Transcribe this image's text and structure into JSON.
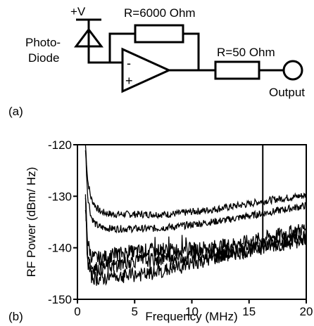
{
  "circuit": {
    "supply_label": "+V",
    "photodiode_label_line1": "Photo-",
    "photodiode_label_line2": "Diode",
    "feedback_resistor_label": "R=6000 Ohm",
    "output_resistor_label": "R=50 Ohm",
    "inverting_input_label": "-",
    "noninverting_input_label": "+",
    "output_label": "Output",
    "panel_label": "(a)"
  },
  "chart_panel_label": "(b)",
  "chart_data": {
    "type": "line",
    "title": "",
    "xlabel": "Frequency (MHz)",
    "ylabel": "RF Power (dBm/ Hz)",
    "xlim": [
      0,
      20
    ],
    "ylim": [
      -150,
      -120
    ],
    "xticks": [
      0,
      5,
      10,
      15,
      20
    ],
    "xtick_labels": [
      "0",
      "5",
      "10",
      "15",
      "20"
    ],
    "yticks": [
      -150,
      -140,
      -130,
      -120
    ],
    "ytick_labels": [
      "-150",
      "-140",
      "-130",
      "-120"
    ],
    "grid": false,
    "legend": false,
    "series": [
      {
        "x": [
          0.7,
          0.9,
          1.2,
          1.6,
          2,
          3,
          4,
          5,
          6,
          7,
          8,
          9,
          10,
          11,
          12,
          13,
          14,
          15,
          16,
          17,
          18,
          19,
          20
        ],
        "y": [
          -120,
          -127,
          -130.5,
          -132,
          -133,
          -133.5,
          -133.5,
          -133.5,
          -133.5,
          -133.5,
          -133.5,
          -133.3,
          -133,
          -132.8,
          -132.5,
          -132.2,
          -131.8,
          -131.5,
          -131,
          -130.7,
          -130.4,
          -130.1,
          -129.8
        ]
      },
      {
        "x": [
          0.7,
          0.9,
          1.2,
          1.6,
          2,
          3,
          4,
          5,
          6,
          7,
          8,
          9,
          10,
          11,
          12,
          13,
          14,
          15,
          16,
          17,
          18,
          19,
          20
        ],
        "y": [
          -121,
          -130,
          -134,
          -135.5,
          -136,
          -136.3,
          -136.3,
          -136.3,
          -136.3,
          -136.2,
          -136,
          -135.8,
          -135.5,
          -135.2,
          -134.9,
          -134.6,
          -134.2,
          -133.8,
          -133.4,
          -133,
          -132.6,
          -132.2,
          -131.8
        ]
      },
      {
        "x": [
          0.7,
          0.9,
          1.2,
          1.6,
          2,
          3,
          4,
          5,
          6,
          7,
          8,
          9,
          10,
          11,
          12,
          13,
          14,
          15,
          16,
          17,
          18,
          19,
          20
        ],
        "y": [
          -130,
          -139,
          -141.5,
          -142,
          -142,
          -141.5,
          -141,
          -140.8,
          -140.5,
          -140.5,
          -140.5,
          -140.3,
          -140.3,
          -140,
          -139.8,
          -139.5,
          -139.2,
          -138.8,
          -138.3,
          -137.8,
          -137.3,
          -136.8,
          -136.2
        ]
      },
      {
        "x": [
          0.7,
          0.9,
          1.2,
          1.6,
          2,
          3,
          4,
          5,
          6,
          7,
          8,
          9,
          10,
          11,
          12,
          13,
          14,
          15,
          16,
          17,
          18,
          19,
          20
        ],
        "y": [
          -131,
          -141,
          -143.5,
          -144,
          -144,
          -143.5,
          -143,
          -142.5,
          -142.5,
          -142.3,
          -142,
          -141.8,
          -141.5,
          -141.2,
          -141,
          -140.7,
          -140.4,
          -140,
          -139.6,
          -139.2,
          -138.8,
          -138.4,
          -138
        ]
      },
      {
        "x": [
          0.7,
          0.9,
          1.2,
          1.6,
          2,
          3,
          4,
          5,
          6,
          7,
          8,
          9,
          10,
          11,
          12,
          13,
          14,
          15,
          16,
          17,
          18,
          19,
          20
        ],
        "y": [
          -132,
          -143,
          -145.5,
          -146,
          -146,
          -145.7,
          -145.5,
          -145.3,
          -145.2,
          -144.8,
          -144.2,
          -143.6,
          -143,
          -142.5,
          -142,
          -141.5,
          -141,
          -140.5,
          -140,
          -139.6,
          -139.2,
          -138.8,
          -138.4
        ]
      }
    ],
    "spike_x": 16.2
  }
}
